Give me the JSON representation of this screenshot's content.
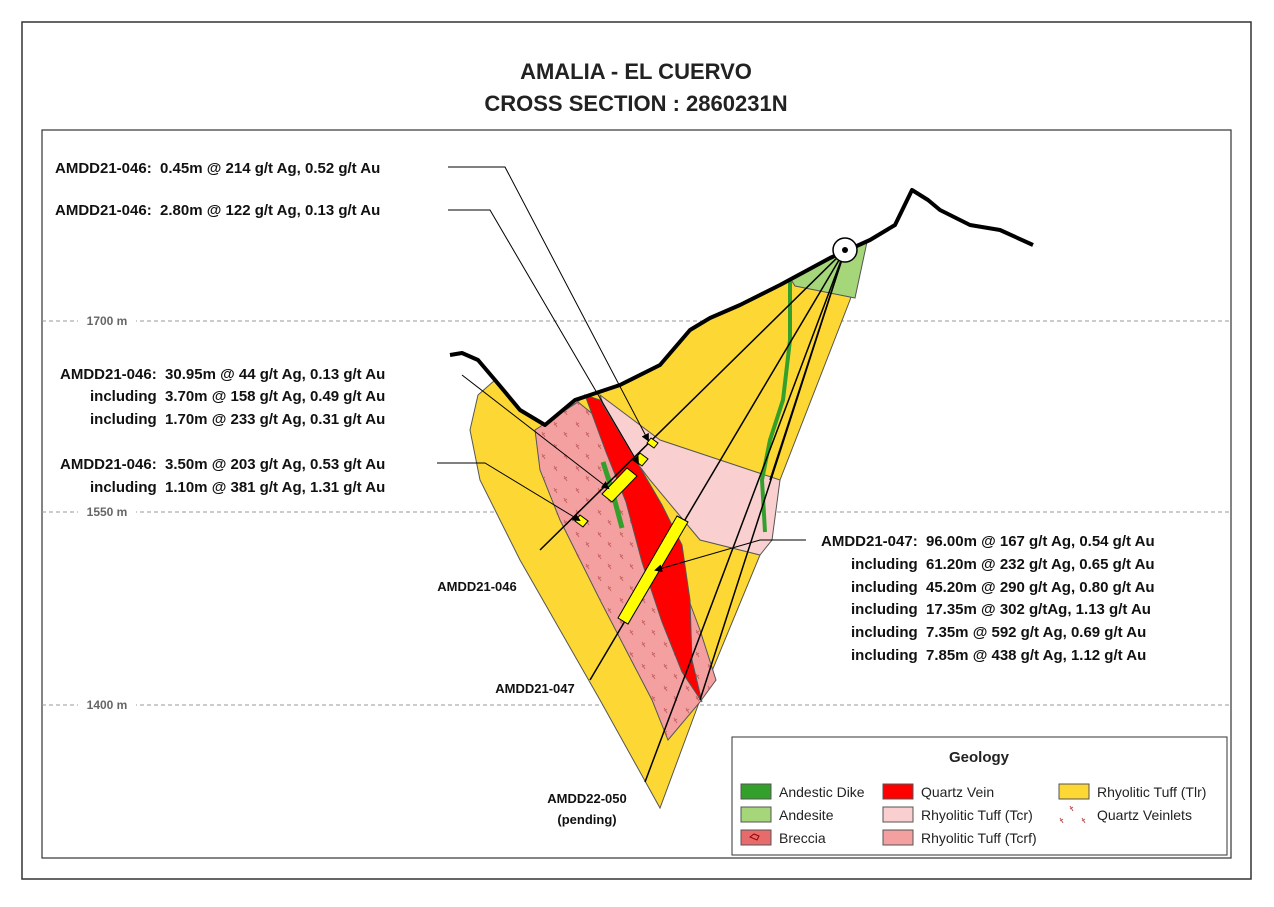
{
  "title": [
    "AMALIA - EL CUERVO",
    "CROSS SECTION : 2860231N"
  ],
  "elevations": [
    "1700 m",
    "1550 m",
    "1400 m"
  ],
  "intercepts": [
    {
      "lines": [
        "AMDD21-046:  0.45m @ 214 g/t Ag, 0.52 g/t Au"
      ]
    },
    {
      "lines": [
        "AMDD21-046:  2.80m @ 122 g/t Ag, 0.13 g/t Au"
      ]
    },
    {
      "lines": [
        "AMDD21-046:  30.95m @ 44 g/t Ag, 0.13 g/t Au",
        "including  3.70m @ 158 g/t Ag, 0.49 g/t Au",
        "including  1.70m @ 233 g/t Ag, 0.31 g/t Au"
      ]
    },
    {
      "lines": [
        "AMDD21-046:  3.50m @ 203 g/t Ag, 0.53 g/t Au",
        "including  1.10m @ 381 g/t Ag, 1.31 g/t Au"
      ]
    },
    {
      "lines": [
        "AMDD21-047:  96.00m @ 167 g/t Ag, 0.54 g/t Au",
        "including  61.20m @ 232 g/t Ag, 0.65 g/t Au",
        "including  45.20m @ 290 g/t Ag, 0.80 g/t Au",
        "including  17.35m @ 302 g/tAg, 1.13 g/t Au",
        "including  7.35m @ 592 g/t Ag, 0.69 g/t Au",
        "including  7.85m @ 438 g/t Ag, 1.12 g/t Au"
      ]
    }
  ],
  "holes": [
    {
      "name": "AMDD21-046"
    },
    {
      "name": "AMDD21-047"
    },
    {
      "name": "AMDD22-050",
      "note": "(pending)"
    }
  ],
  "legend": {
    "title": "Geology",
    "items": [
      "Andestic Dike",
      "Andesite",
      "Breccia",
      "Quartz Vein",
      "Rhyolitic Tuff (Tcr)",
      "Rhyolitic Tuff (Tcrf)",
      "Rhyolitic Tuff (Tlr)",
      "Quartz Veinlets"
    ]
  }
}
